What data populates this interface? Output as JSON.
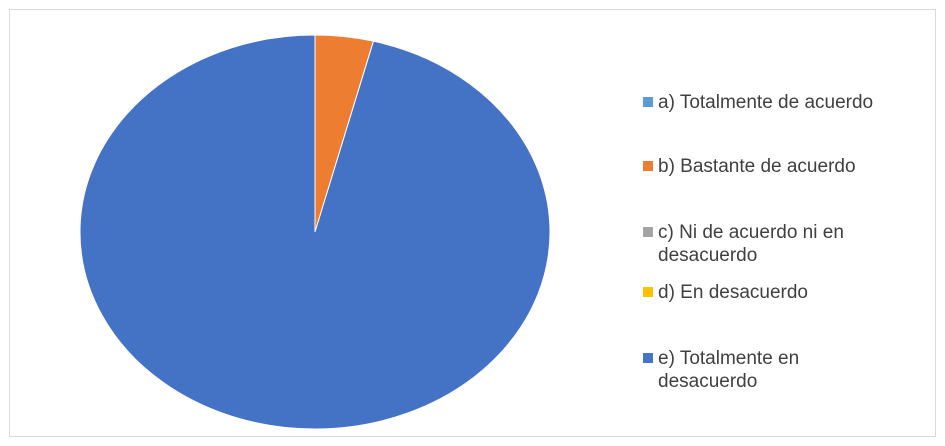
{
  "chart_data": {
    "type": "pie",
    "start_angle_deg": 0,
    "direction": "clockwise",
    "slices": [
      {
        "label": "a)    Totalmente de acuerdo",
        "value": 0,
        "color": "#5B9BD5"
      },
      {
        "label": "b)    Bastante de acuerdo",
        "value": 4,
        "color": "#ED7D31"
      },
      {
        "label": "c)    Ni de acuerdo ni en\ndesacuerdo",
        "value": 0,
        "color": "#A5A5A5"
      },
      {
        "label": "d)    En desacuerdo",
        "value": 0,
        "color": "#FFC000"
      },
      {
        "label": "e)    Totalmente en\ndesacuerdo",
        "value": 96,
        "color": "#4472C4"
      }
    ],
    "legend_position": "right"
  }
}
